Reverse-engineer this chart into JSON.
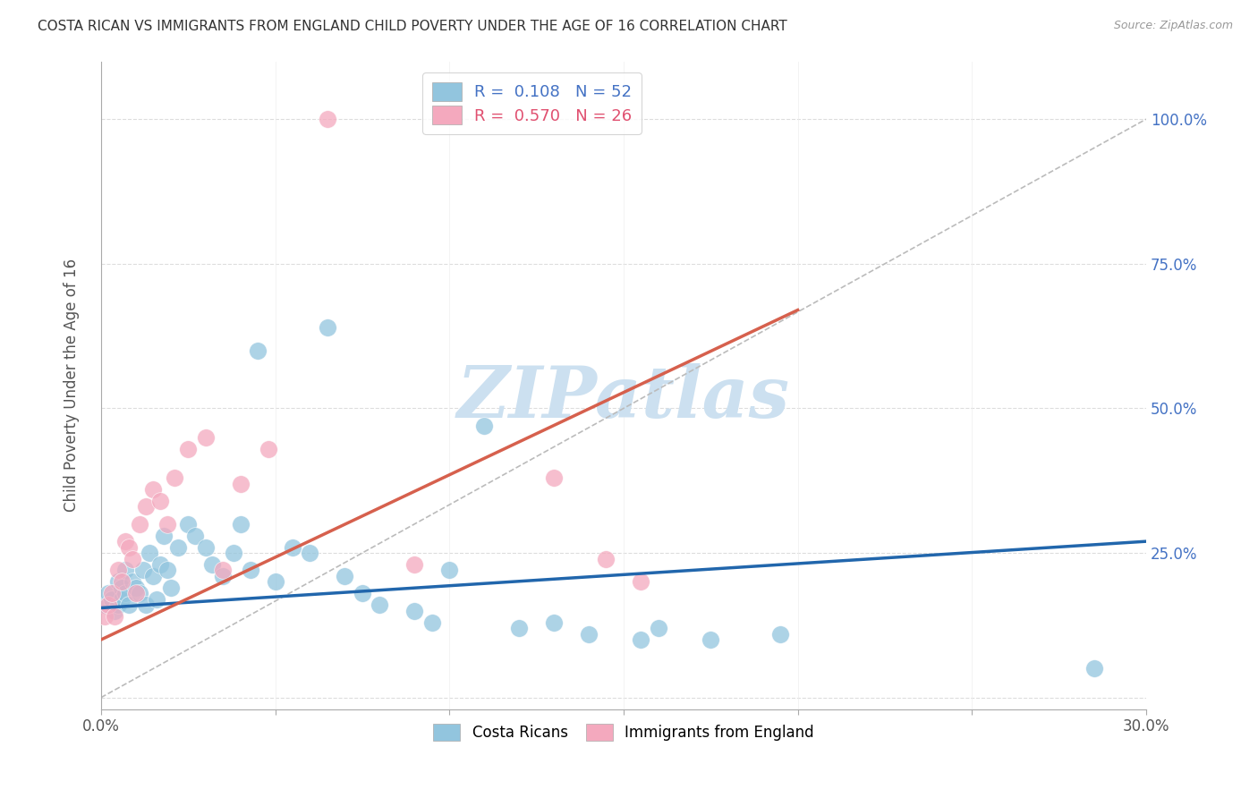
{
  "title": "COSTA RICAN VS IMMIGRANTS FROM ENGLAND CHILD POVERTY UNDER THE AGE OF 16 CORRELATION CHART",
  "source": "Source: ZipAtlas.com",
  "ylabel": "Child Poverty Under the Age of 16",
  "xlim": [
    0.0,
    0.3
  ],
  "ylim": [
    -0.02,
    1.1
  ],
  "xticks": [
    0.0,
    0.05,
    0.1,
    0.15,
    0.2,
    0.25,
    0.3
  ],
  "xticklabels": [
    "0.0%",
    "",
    "",
    "",
    "",
    "",
    "30.0%"
  ],
  "yticks": [
    0.0,
    0.25,
    0.5,
    0.75,
    1.0
  ],
  "yticklabels": [
    "",
    "25.0%",
    "50.0%",
    "75.0%",
    "100.0%"
  ],
  "blue_R": "0.108",
  "blue_N": "52",
  "pink_R": "0.570",
  "pink_N": "26",
  "blue_color": "#92c5de",
  "pink_color": "#f4a9be",
  "blue_line_color": "#2166ac",
  "pink_line_color": "#d6604d",
  "watermark": "ZIPatlas",
  "watermark_color": "#cce0f0",
  "blue_trend_x0": 0.0,
  "blue_trend_y0": 0.155,
  "blue_trend_x1": 0.3,
  "blue_trend_y1": 0.27,
  "pink_trend_x0": 0.0,
  "pink_trend_y0": 0.1,
  "pink_trend_x1": 0.2,
  "pink_trend_y1": 0.67,
  "ref_line_x": [
    0.0,
    0.3
  ],
  "ref_line_y": [
    0.0,
    1.0
  ],
  "blue_scatter_x": [
    0.001,
    0.002,
    0.003,
    0.004,
    0.005,
    0.005,
    0.006,
    0.006,
    0.007,
    0.007,
    0.008,
    0.009,
    0.01,
    0.011,
    0.012,
    0.013,
    0.014,
    0.015,
    0.016,
    0.017,
    0.018,
    0.019,
    0.02,
    0.022,
    0.025,
    0.027,
    0.03,
    0.032,
    0.035,
    0.038,
    0.04,
    0.043,
    0.045,
    0.05,
    0.055,
    0.06,
    0.065,
    0.07,
    0.075,
    0.08,
    0.09,
    0.095,
    0.1,
    0.11,
    0.12,
    0.13,
    0.14,
    0.155,
    0.16,
    0.175,
    0.195,
    0.285
  ],
  "blue_scatter_y": [
    0.16,
    0.18,
    0.17,
    0.15,
    0.2,
    0.16,
    0.19,
    0.17,
    0.22,
    0.18,
    0.16,
    0.2,
    0.19,
    0.18,
    0.22,
    0.16,
    0.25,
    0.21,
    0.17,
    0.23,
    0.28,
    0.22,
    0.19,
    0.26,
    0.3,
    0.28,
    0.26,
    0.23,
    0.21,
    0.25,
    0.3,
    0.22,
    0.6,
    0.2,
    0.26,
    0.25,
    0.64,
    0.21,
    0.18,
    0.16,
    0.15,
    0.13,
    0.22,
    0.47,
    0.12,
    0.13,
    0.11,
    0.1,
    0.12,
    0.1,
    0.11,
    0.05
  ],
  "pink_scatter_x": [
    0.001,
    0.002,
    0.003,
    0.004,
    0.005,
    0.006,
    0.007,
    0.008,
    0.009,
    0.01,
    0.011,
    0.013,
    0.015,
    0.017,
    0.019,
    0.021,
    0.025,
    0.03,
    0.035,
    0.04,
    0.048,
    0.065,
    0.09,
    0.13,
    0.145,
    0.155
  ],
  "pink_scatter_y": [
    0.14,
    0.16,
    0.18,
    0.14,
    0.22,
    0.2,
    0.27,
    0.26,
    0.24,
    0.18,
    0.3,
    0.33,
    0.36,
    0.34,
    0.3,
    0.38,
    0.43,
    0.45,
    0.22,
    0.37,
    0.43,
    1.0,
    0.23,
    0.38,
    0.24,
    0.2
  ]
}
